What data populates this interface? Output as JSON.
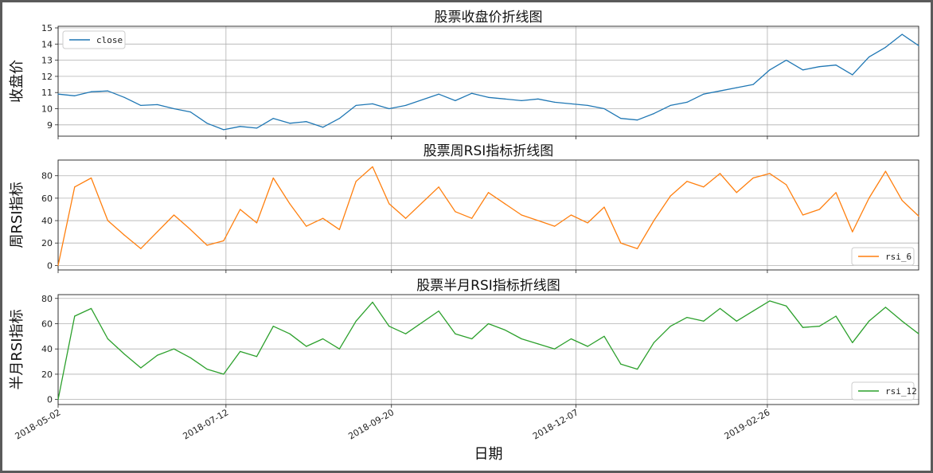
{
  "chart_data": [
    {
      "type": "line",
      "title": "股票收盘价折线图",
      "ylabel": "收盘价",
      "xlabel": "",
      "ylim": [
        8.3,
        15.1
      ],
      "yticks": [
        9,
        10,
        11,
        12,
        13,
        14,
        15
      ],
      "grid": true,
      "legend_placement": "upper-left",
      "series": [
        {
          "name": "close",
          "color": "#1f77b4",
          "x": [
            "2018-05-02",
            "2018-05-09",
            "2018-05-16",
            "2018-05-23",
            "2018-05-30",
            "2018-06-06",
            "2018-06-13",
            "2018-06-20",
            "2018-06-27",
            "2018-07-04",
            "2018-07-11",
            "2018-07-18",
            "2018-07-25",
            "2018-08-01",
            "2018-08-08",
            "2018-08-15",
            "2018-08-22",
            "2018-08-29",
            "2018-09-05",
            "2018-09-12",
            "2018-09-19",
            "2018-09-26",
            "2018-10-10",
            "2018-10-17",
            "2018-10-24",
            "2018-10-31",
            "2018-11-07",
            "2018-11-14",
            "2018-11-21",
            "2018-11-28",
            "2018-12-05",
            "2018-12-12",
            "2018-12-19",
            "2018-12-26",
            "2019-01-02",
            "2019-01-09",
            "2019-01-16",
            "2019-01-23",
            "2019-01-30",
            "2019-02-06",
            "2019-02-13",
            "2019-02-20",
            "2019-02-27",
            "2019-03-06",
            "2019-03-13",
            "2019-03-20",
            "2019-03-27",
            "2019-04-03",
            "2019-04-10",
            "2019-04-17",
            "2019-04-24",
            "2019-05-01"
          ],
          "values": [
            10.9,
            10.8,
            11.05,
            11.1,
            10.7,
            10.2,
            10.25,
            10.0,
            9.8,
            9.1,
            8.7,
            8.9,
            8.8,
            9.4,
            9.1,
            9.2,
            8.85,
            9.4,
            10.2,
            10.3,
            10.0,
            10.2,
            10.9,
            10.5,
            10.95,
            10.7,
            10.6,
            10.5,
            10.6,
            10.4,
            10.3,
            10.2,
            10.0,
            9.4,
            9.3,
            9.7,
            10.2,
            10.4,
            10.9,
            11.1,
            11.3,
            11.5,
            12.4,
            13.0,
            12.4,
            12.6,
            12.7,
            12.1,
            13.2,
            13.8,
            14.6,
            13.9
          ]
        }
      ]
    },
    {
      "type": "line",
      "title": "股票周RSI指标折线图",
      "ylabel": "周RSI指标",
      "xlabel": "",
      "ylim": [
        -4,
        94
      ],
      "yticks": [
        0,
        20,
        40,
        60,
        80
      ],
      "grid": true,
      "legend_placement": "lower-right",
      "series": [
        {
          "name": "rsi_6",
          "color": "#ff7f0e",
          "x": [
            "2018-05-02",
            "2018-05-09",
            "2018-05-16",
            "2018-05-23",
            "2018-05-30",
            "2018-06-06",
            "2018-06-13",
            "2018-06-20",
            "2018-06-27",
            "2018-07-04",
            "2018-07-11",
            "2018-07-18",
            "2018-07-25",
            "2018-08-01",
            "2018-08-08",
            "2018-08-15",
            "2018-08-22",
            "2018-08-29",
            "2018-09-05",
            "2018-09-12",
            "2018-09-19",
            "2018-09-26",
            "2018-10-10",
            "2018-10-17",
            "2018-10-24",
            "2018-10-31",
            "2018-11-07",
            "2018-11-14",
            "2018-11-21",
            "2018-11-28",
            "2018-12-05",
            "2018-12-12",
            "2018-12-19",
            "2018-12-26",
            "2019-01-02",
            "2019-01-09",
            "2019-01-16",
            "2019-01-23",
            "2019-01-30",
            "2019-02-06",
            "2019-02-13",
            "2019-02-20",
            "2019-02-27",
            "2019-03-06",
            "2019-03-13",
            "2019-03-20",
            "2019-03-27",
            "2019-04-03",
            "2019-04-10",
            "2019-04-17",
            "2019-04-24",
            "2019-05-01"
          ],
          "values": [
            0,
            70,
            78,
            40,
            27,
            15,
            30,
            45,
            32,
            18,
            22,
            50,
            38,
            78,
            55,
            35,
            42,
            32,
            75,
            88,
            55,
            42,
            70,
            48,
            42,
            65,
            55,
            45,
            40,
            35,
            45,
            38,
            52,
            20,
            15,
            40,
            62,
            75,
            70,
            82,
            65,
            78,
            82,
            72,
            45,
            50,
            65,
            30,
            60,
            84,
            58,
            44
          ]
        }
      ]
    },
    {
      "type": "line",
      "title": "股票半月RSI指标折线图",
      "ylabel": "半月RSI指标",
      "xlabel": "日期",
      "ylim": [
        -4,
        83
      ],
      "yticks": [
        0,
        20,
        40,
        60,
        80
      ],
      "xtick_labels": [
        "2018-05-02",
        "2018-07-12",
        "2018-09-20",
        "2018-12-07",
        "2019-02-26"
      ],
      "grid": true,
      "legend_placement": "lower-right",
      "series": [
        {
          "name": "rsi_12",
          "color": "#2ca02c",
          "x": [
            "2018-05-02",
            "2018-05-09",
            "2018-05-16",
            "2018-05-23",
            "2018-05-30",
            "2018-06-06",
            "2018-06-13",
            "2018-06-20",
            "2018-06-27",
            "2018-07-04",
            "2018-07-11",
            "2018-07-18",
            "2018-07-25",
            "2018-08-01",
            "2018-08-08",
            "2018-08-15",
            "2018-08-22",
            "2018-08-29",
            "2018-09-05",
            "2018-09-12",
            "2018-09-19",
            "2018-09-26",
            "2018-10-10",
            "2018-10-17",
            "2018-10-24",
            "2018-10-31",
            "2018-11-07",
            "2018-11-14",
            "2018-11-21",
            "2018-11-28",
            "2018-12-05",
            "2018-12-12",
            "2018-12-19",
            "2018-12-26",
            "2019-01-02",
            "2019-01-09",
            "2019-01-16",
            "2019-01-23",
            "2019-01-30",
            "2019-02-06",
            "2019-02-13",
            "2019-02-20",
            "2019-02-27",
            "2019-03-06",
            "2019-03-13",
            "2019-03-20",
            "2019-03-27",
            "2019-04-03",
            "2019-04-10",
            "2019-04-17",
            "2019-04-24",
            "2019-05-01"
          ],
          "values": [
            0,
            66,
            72,
            48,
            36,
            25,
            35,
            40,
            33,
            24,
            20,
            38,
            34,
            58,
            52,
            42,
            48,
            40,
            62,
            77,
            58,
            52,
            70,
            52,
            48,
            60,
            55,
            48,
            44,
            40,
            48,
            42,
            50,
            28,
            24,
            45,
            58,
            65,
            62,
            72,
            62,
            70,
            78,
            74,
            57,
            58,
            66,
            45,
            62,
            73,
            62,
            52
          ]
        }
      ]
    }
  ]
}
